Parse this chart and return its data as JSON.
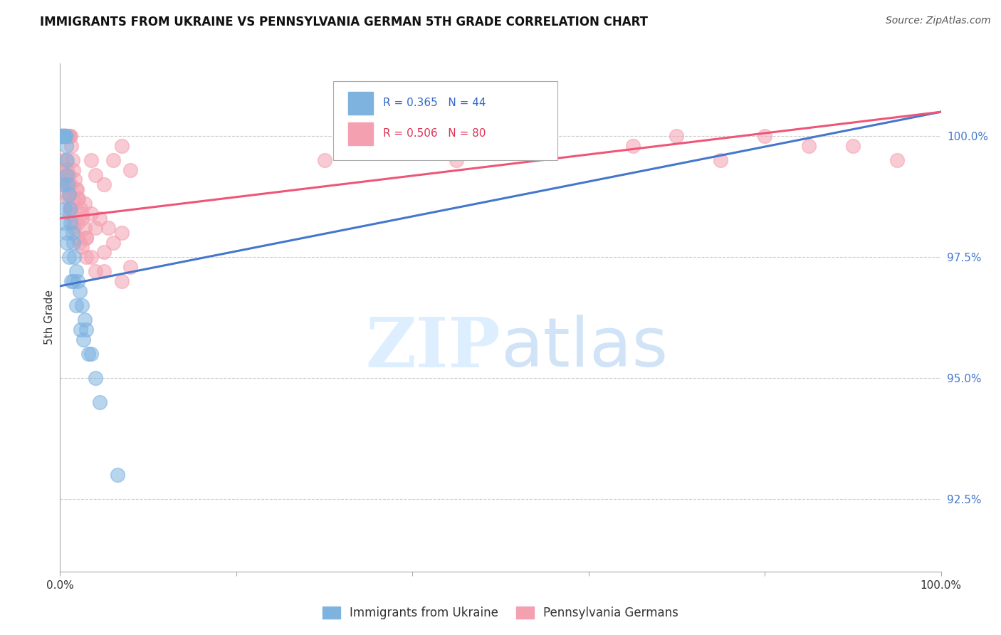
{
  "title": "IMMIGRANTS FROM UKRAINE VS PENNSYLVANIA GERMAN 5TH GRADE CORRELATION CHART",
  "source": "Source: ZipAtlas.com",
  "ylabel": "5th Grade",
  "ylabel_right_ticks": [
    100.0,
    97.5,
    95.0,
    92.5
  ],
  "ylabel_right_labels": [
    "100.0%",
    "97.5%",
    "95.0%",
    "92.5%"
  ],
  "xlim": [
    0.0,
    100.0
  ],
  "ylim": [
    91.0,
    101.5
  ],
  "legend_blue_label": "R = 0.365   N = 44",
  "legend_pink_label": "R = 0.506   N = 80",
  "legend_bottom_blue": "Immigrants from Ukraine",
  "legend_bottom_pink": "Pennsylvania Germans",
  "blue_color": "#7EB3E0",
  "pink_color": "#F4A0B0",
  "blue_line_color": "#4477CC",
  "pink_line_color": "#EE5577",
  "background_color": "#ffffff",
  "blue_scatter_x": [
    0.1,
    0.15,
    0.2,
    0.25,
    0.3,
    0.35,
    0.4,
    0.45,
    0.5,
    0.55,
    0.6,
    0.65,
    0.7,
    0.75,
    0.8,
    0.9,
    1.0,
    1.1,
    1.2,
    1.4,
    1.5,
    1.6,
    1.8,
    2.0,
    2.2,
    2.5,
    2.8,
    3.0,
    3.5,
    4.0,
    0.3,
    0.5,
    0.7,
    1.0,
    1.3,
    1.8,
    2.3,
    3.2,
    0.4,
    0.8,
    1.5,
    2.6,
    4.5,
    6.5
  ],
  "blue_scatter_y": [
    100.0,
    100.0,
    100.0,
    100.0,
    100.0,
    100.0,
    100.0,
    100.0,
    100.0,
    100.0,
    100.0,
    100.0,
    99.8,
    99.5,
    99.2,
    99.0,
    98.8,
    98.5,
    98.2,
    98.0,
    97.8,
    97.5,
    97.2,
    97.0,
    96.8,
    96.5,
    96.2,
    96.0,
    95.5,
    95.0,
    99.0,
    98.5,
    98.0,
    97.5,
    97.0,
    96.5,
    96.0,
    95.5,
    98.2,
    97.8,
    97.0,
    95.8,
    94.5,
    93.0
  ],
  "pink_scatter_x": [
    0.1,
    0.2,
    0.3,
    0.4,
    0.5,
    0.6,
    0.7,
    0.8,
    0.9,
    1.0,
    1.1,
    1.2,
    1.3,
    1.4,
    1.5,
    1.7,
    1.9,
    2.1,
    2.3,
    2.5,
    2.8,
    3.0,
    3.5,
    4.0,
    5.0,
    6.0,
    7.0,
    8.0,
    0.3,
    0.5,
    0.7,
    1.0,
    1.2,
    1.5,
    2.0,
    2.5,
    3.0,
    4.0,
    0.4,
    0.6,
    0.9,
    1.1,
    1.6,
    2.2,
    3.5,
    5.0,
    7.0,
    0.5,
    0.8,
    1.3,
    2.0,
    3.0,
    5.0,
    8.0,
    1.0,
    1.5,
    2.5,
    4.0,
    6.0,
    0.6,
    1.0,
    1.8,
    2.8,
    4.5,
    7.0,
    0.8,
    1.2,
    2.0,
    3.5,
    5.5,
    30.0,
    55.0,
    70.0,
    80.0,
    90.0,
    95.0,
    65.0,
    45.0,
    85.0,
    75.0
  ],
  "pink_scatter_y": [
    100.0,
    100.0,
    100.0,
    100.0,
    100.0,
    100.0,
    100.0,
    100.0,
    100.0,
    100.0,
    100.0,
    100.0,
    99.8,
    99.5,
    99.3,
    99.1,
    98.9,
    98.7,
    98.5,
    98.3,
    98.1,
    97.9,
    99.5,
    99.2,
    99.0,
    99.5,
    99.8,
    99.3,
    99.5,
    99.2,
    99.0,
    98.8,
    98.5,
    98.2,
    97.9,
    97.7,
    97.5,
    97.2,
    99.3,
    99.0,
    98.7,
    98.4,
    98.1,
    97.8,
    97.5,
    97.2,
    97.0,
    99.1,
    98.8,
    98.5,
    98.2,
    97.9,
    97.6,
    97.3,
    99.0,
    98.7,
    98.4,
    98.1,
    97.8,
    99.5,
    99.2,
    98.9,
    98.6,
    98.3,
    98.0,
    99.3,
    99.0,
    98.7,
    98.4,
    98.1,
    99.5,
    99.8,
    100.0,
    100.0,
    99.8,
    99.5,
    99.8,
    99.5,
    99.8,
    99.5
  ],
  "blue_trend_x": [
    0.0,
    100.0
  ],
  "blue_trend_y": [
    96.9,
    100.5
  ],
  "pink_trend_x": [
    0.0,
    100.0
  ],
  "pink_trend_y": [
    98.3,
    100.5
  ]
}
